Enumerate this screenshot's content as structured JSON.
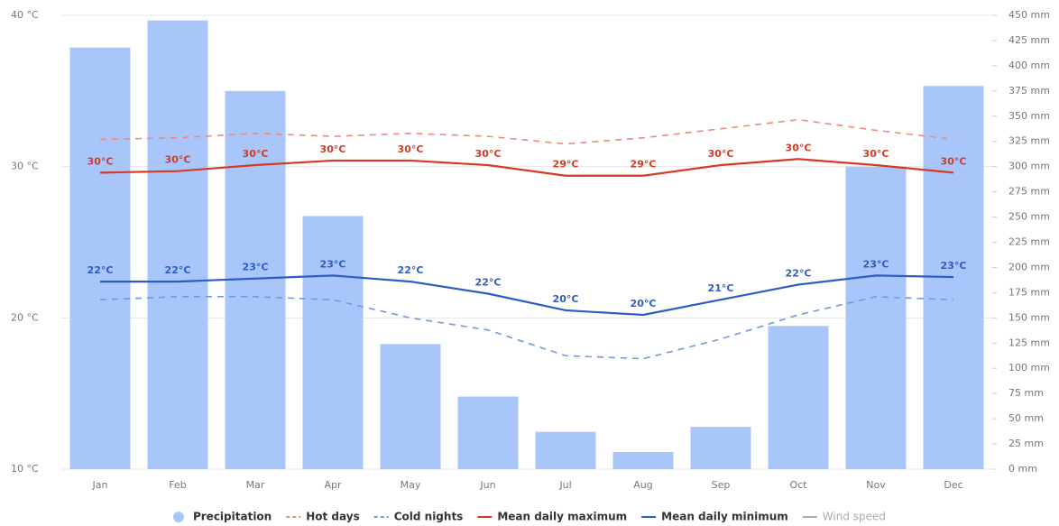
{
  "chart_data": {
    "type": "combo",
    "categories": [
      "Jan",
      "Feb",
      "Mar",
      "Apr",
      "May",
      "Jun",
      "Jul",
      "Aug",
      "Sep",
      "Oct",
      "Nov",
      "Dec"
    ],
    "series": [
      {
        "name": "Precipitation",
        "type": "bar",
        "axis": "y2",
        "color": "#a9c6fb",
        "values": [
          418,
          445,
          375,
          251,
          124,
          72,
          37,
          17,
          42,
          142,
          300,
          380
        ]
      },
      {
        "name": "Hot days",
        "type": "line",
        "dash": true,
        "color": "#f08a7e",
        "values": [
          31.8,
          31.9,
          32.2,
          32.0,
          32.2,
          32.0,
          31.5,
          31.9,
          32.5,
          33.1,
          32.4,
          31.8
        ]
      },
      {
        "name": "Cold nights",
        "type": "line",
        "dash": true,
        "color": "#6d9be0",
        "values": [
          21.2,
          21.4,
          21.4,
          21.2,
          20.0,
          19.2,
          17.5,
          17.3,
          18.6,
          20.2,
          21.4,
          21.2
        ]
      },
      {
        "name": "Mean daily maximum",
        "type": "line",
        "color": "#d63a26",
        "values": [
          29.6,
          29.7,
          30.1,
          30.4,
          30.4,
          30.1,
          29.4,
          29.4,
          30.1,
          30.5,
          30.1,
          29.6
        ],
        "value_labels": [
          "30°C",
          "30°C",
          "30°C",
          "30°C",
          "30°C",
          "30°C",
          "29°C",
          "29°C",
          "30°C",
          "30°C",
          "30°C",
          "30°C"
        ]
      },
      {
        "name": "Mean daily minimum",
        "type": "line",
        "color": "#2d5cc4",
        "values": [
          22.4,
          22.4,
          22.6,
          22.8,
          22.4,
          21.6,
          20.5,
          20.2,
          21.2,
          22.2,
          22.8,
          22.7
        ],
        "value_labels": [
          "22°C",
          "22°C",
          "23°C",
          "23°C",
          "22°C",
          "22°C",
          "20°C",
          "20°C",
          "21°C",
          "22°C",
          "23°C",
          "23°C"
        ]
      },
      {
        "name": "Wind speed",
        "type": "line",
        "hidden": true,
        "color": "#aaaaaa",
        "values": [
          null,
          null,
          null,
          null,
          null,
          null,
          null,
          null,
          null,
          null,
          null,
          null
        ]
      }
    ],
    "ylim": [
      10,
      40
    ],
    "yticks": [
      {
        "value": 10,
        "label": "10 °C"
      },
      {
        "value": 20,
        "label": "20 °C"
      },
      {
        "value": 30,
        "label": "30 °C"
      },
      {
        "value": 40,
        "label": "40 °C"
      }
    ],
    "y2lim": [
      0,
      450
    ],
    "y2ticks": [
      {
        "value": 0,
        "label": "0 mm"
      },
      {
        "value": 25,
        "label": "25 mm"
      },
      {
        "value": 50,
        "label": "50 mm"
      },
      {
        "value": 75,
        "label": "75 mm"
      },
      {
        "value": 100,
        "label": "100 mm"
      },
      {
        "value": 125,
        "label": "125 mm"
      },
      {
        "value": 150,
        "label": "150 mm"
      },
      {
        "value": 175,
        "label": "175 mm"
      },
      {
        "value": 200,
        "label": "200 mm"
      },
      {
        "value": 225,
        "label": "225 mm"
      },
      {
        "value": 250,
        "label": "250 mm"
      },
      {
        "value": 275,
        "label": "275 mm"
      },
      {
        "value": 300,
        "label": "300 mm"
      },
      {
        "value": 325,
        "label": "325 mm"
      },
      {
        "value": 350,
        "label": "350 mm"
      },
      {
        "value": 375,
        "label": "375 mm"
      },
      {
        "value": 400,
        "label": "400 mm"
      },
      {
        "value": 425,
        "label": "425 mm"
      },
      {
        "value": 450,
        "label": "450 mm"
      }
    ],
    "grid": true
  }
}
